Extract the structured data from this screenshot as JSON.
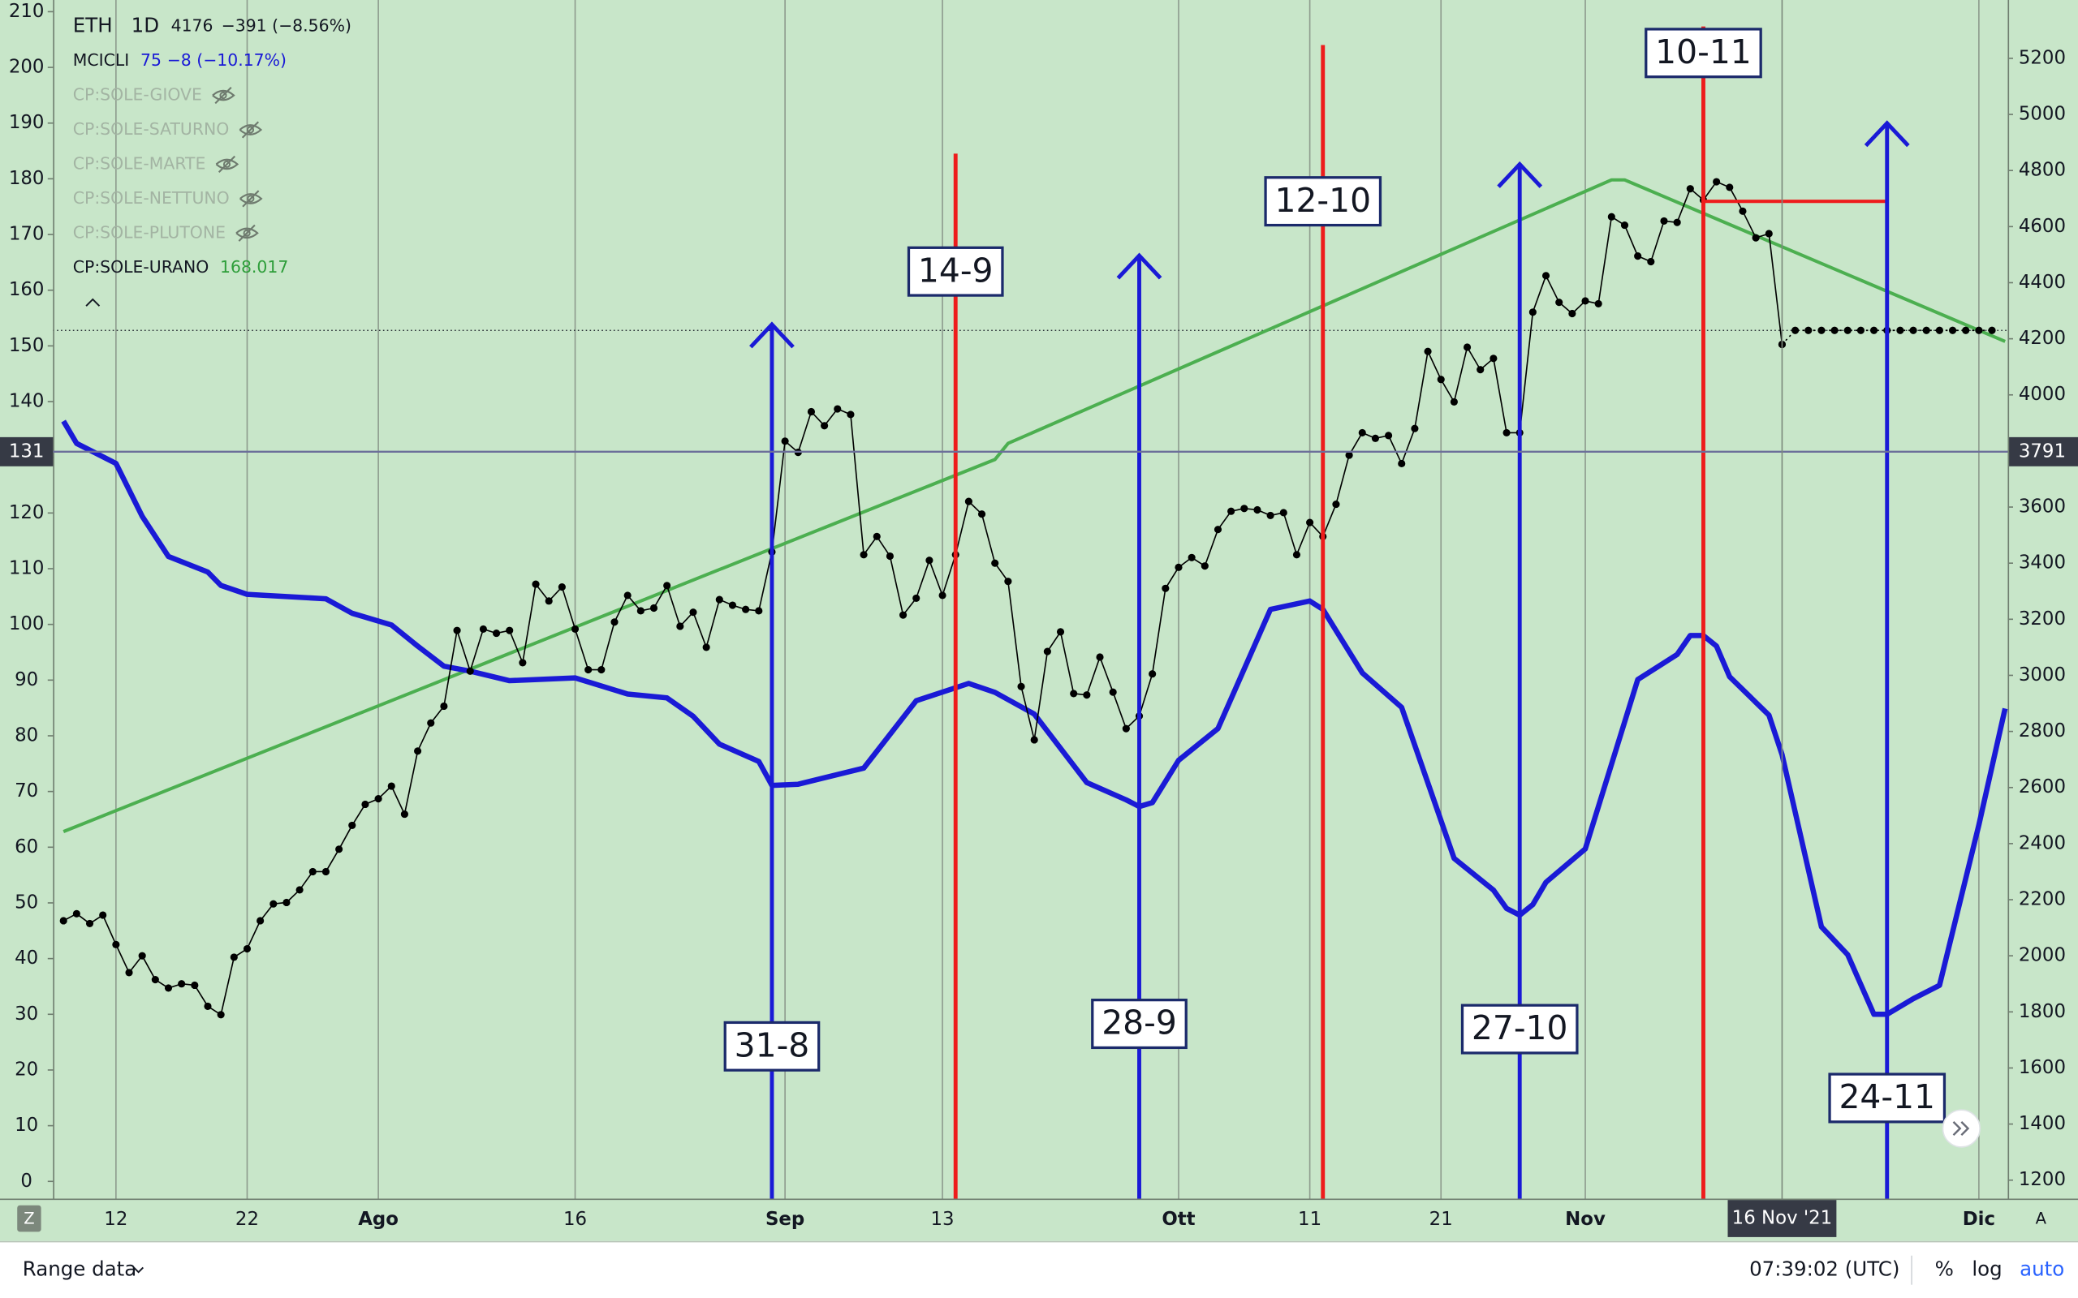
{
  "chart_data": {
    "type": "line",
    "xlim": [
      "2021-07-07",
      "2021-12-03"
    ],
    "ylim": [
      -3.1,
      212.1
    ],
    "y2lim": [
      1134,
      5408
    ],
    "xticks": [
      {
        "value": "2021-07-12",
        "label": "12"
      },
      {
        "value": "2021-07-22",
        "label": "22"
      },
      {
        "value": "2021-08-01",
        "label": "Ago"
      },
      {
        "value": "2021-08-16",
        "label": "16"
      },
      {
        "value": "2021-09-01",
        "label": "Sep"
      },
      {
        "value": "2021-09-13",
        "label": "13"
      },
      {
        "value": "2021-10-01",
        "label": "Ott"
      },
      {
        "value": "2021-10-11",
        "label": "11"
      },
      {
        "value": "2021-10-21",
        "label": "21"
      },
      {
        "value": "2021-11-01",
        "label": "Nov"
      },
      {
        "value": "2021-12-01",
        "label": "Dic"
      }
    ],
    "yticks": [
      0,
      10,
      20,
      30,
      40,
      50,
      60,
      70,
      80,
      90,
      100,
      110,
      120,
      130,
      140,
      150,
      160,
      170,
      180,
      190,
      200,
      210
    ],
    "y2ticks": [
      1200,
      1400,
      1600,
      1800,
      2000,
      2200,
      2400,
      2600,
      2800,
      3000,
      3200,
      3400,
      3600,
      3800,
      4000,
      4200,
      4400,
      4600,
      4800,
      5000,
      5200
    ],
    "grid": {
      "vertical": true,
      "horizontal": false
    },
    "series": [
      {
        "name": "ETH",
        "interval": "1D",
        "last": 4176,
        "change": "−391 (−8.56%)",
        "axis": "y2",
        "color": "#000000",
        "markers": true,
        "x": [
          "2021-07-08",
          "2021-07-09",
          "2021-07-10",
          "2021-07-11",
          "2021-07-12",
          "2021-07-13",
          "2021-07-14",
          "2021-07-15",
          "2021-07-16",
          "2021-07-17",
          "2021-07-18",
          "2021-07-19",
          "2021-07-20",
          "2021-07-21",
          "2021-07-22",
          "2021-07-23",
          "2021-07-24",
          "2021-07-25",
          "2021-07-26",
          "2021-07-27",
          "2021-07-28",
          "2021-07-29",
          "2021-07-30",
          "2021-07-31",
          "2021-08-01",
          "2021-08-02",
          "2021-08-03",
          "2021-08-04",
          "2021-08-05",
          "2021-08-06",
          "2021-08-07",
          "2021-08-08",
          "2021-08-09",
          "2021-08-10",
          "2021-08-11",
          "2021-08-12",
          "2021-08-13",
          "2021-08-14",
          "2021-08-15",
          "2021-08-16",
          "2021-08-17",
          "2021-08-18",
          "2021-08-19",
          "2021-08-20",
          "2021-08-21",
          "2021-08-22",
          "2021-08-23",
          "2021-08-24",
          "2021-08-25",
          "2021-08-26",
          "2021-08-27",
          "2021-08-28",
          "2021-08-29",
          "2021-08-30",
          "2021-08-31",
          "2021-09-01",
          "2021-09-02",
          "2021-09-03",
          "2021-09-04",
          "2021-09-05",
          "2021-09-06",
          "2021-09-07",
          "2021-09-08",
          "2021-09-09",
          "2021-09-10",
          "2021-09-11",
          "2021-09-12",
          "2021-09-13",
          "2021-09-14",
          "2021-09-15",
          "2021-09-16",
          "2021-09-17",
          "2021-09-18",
          "2021-09-19",
          "2021-09-20",
          "2021-09-21",
          "2021-09-22",
          "2021-09-23",
          "2021-09-24",
          "2021-09-25",
          "2021-09-26",
          "2021-09-27",
          "2021-09-28",
          "2021-09-29",
          "2021-09-30",
          "2021-10-01",
          "2021-10-02",
          "2021-10-03",
          "2021-10-04",
          "2021-10-05",
          "2021-10-06",
          "2021-10-07",
          "2021-10-08",
          "2021-10-09",
          "2021-10-10",
          "2021-10-11",
          "2021-10-12",
          "2021-10-13",
          "2021-10-14",
          "2021-10-15",
          "2021-10-16",
          "2021-10-17",
          "2021-10-18",
          "2021-10-19",
          "2021-10-20",
          "2021-10-21",
          "2021-10-22",
          "2021-10-23",
          "2021-10-24",
          "2021-10-25",
          "2021-10-26",
          "2021-10-27",
          "2021-10-28",
          "2021-10-29",
          "2021-10-30",
          "2021-10-31",
          "2021-11-01",
          "2021-11-02",
          "2021-11-03",
          "2021-11-04",
          "2021-11-05",
          "2021-11-06",
          "2021-11-07",
          "2021-11-08",
          "2021-11-09",
          "2021-11-10",
          "2021-11-11",
          "2021-11-12",
          "2021-11-13",
          "2021-11-14",
          "2021-11-15",
          "2021-11-16"
        ],
        "values": [
          2125,
          2150,
          2115,
          2145,
          2040,
          1940,
          2000,
          1915,
          1885,
          1900,
          1895,
          1820,
          1790,
          1995,
          2025,
          2125,
          2185,
          2190,
          2235,
          2300,
          2300,
          2380,
          2465,
          2540,
          2560,
          2605,
          2505,
          2730,
          2830,
          2890,
          3160,
          3015,
          3165,
          3150,
          3160,
          3045,
          3325,
          3265,
          3315,
          3165,
          3020,
          3020,
          3190,
          3285,
          3230,
          3240,
          3320,
          3175,
          3225,
          3100,
          3270,
          3250,
          3235,
          3230,
          3440,
          3835,
          3795,
          3940,
          3890,
          3950,
          3930,
          3430,
          3495,
          3425,
          3215,
          3275,
          3410,
          3285,
          3430,
          3620,
          3575,
          3400,
          3335,
          2960,
          2770,
          3085,
          3155,
          2935,
          2930,
          3065,
          2940,
          2810,
          2855,
          3005,
          3310,
          3385,
          3420,
          3390,
          3520,
          3585,
          3595,
          3590,
          3570,
          3580,
          3430,
          3545,
          3495,
          3610,
          3785,
          3865,
          3845,
          3855,
          3755,
          3880,
          4155,
          4055,
          3975,
          4170,
          4090,
          4130,
          3865,
          3865,
          4295,
          4425,
          4330,
          4290,
          4335,
          4325,
          4635,
          4605,
          4495,
          4475,
          4620,
          4615,
          4735,
          4695,
          4760,
          4740,
          4655,
          4560,
          4575,
          4180
        ]
      },
      {
        "axis": "y2",
        "color": "#000000",
        "markers": true,
        "dash": true,
        "x": [
          "2021-11-16",
          "2021-11-17",
          "2021-11-18",
          "2021-11-19",
          "2021-11-20",
          "2021-11-21",
          "2021-11-22",
          "2021-11-23",
          "2021-11-24",
          "2021-11-25",
          "2021-11-26",
          "2021-11-27",
          "2021-11-28",
          "2021-11-29",
          "2021-11-30",
          "2021-12-01",
          "2021-12-02"
        ],
        "values": [
          4180,
          4230,
          4230,
          4230,
          4230,
          4230,
          4230,
          4230,
          4230,
          4230,
          4230,
          4230,
          4230,
          4230,
          4230,
          4230,
          4230
        ]
      },
      {
        "name": "MCICLI",
        "last": 75,
        "change": "−8 (−10.17%)",
        "axis": "y",
        "color": "#1a1ad6",
        "width": 4,
        "x": [
          "2021-07-08",
          "2021-07-09",
          "2021-07-12",
          "2021-07-14",
          "2021-07-16",
          "2021-07-19",
          "2021-07-20",
          "2021-07-22",
          "2021-07-28",
          "2021-07-30",
          "2021-08-02",
          "2021-08-04",
          "2021-08-06",
          "2021-08-08",
          "2021-08-11",
          "2021-08-16",
          "2021-08-20",
          "2021-08-23",
          "2021-08-25",
          "2021-08-27",
          "2021-08-30",
          "2021-08-31",
          "2021-09-02",
          "2021-09-07",
          "2021-09-11",
          "2021-09-15",
          "2021-09-17",
          "2021-09-20",
          "2021-09-24",
          "2021-09-27",
          "2021-09-28",
          "2021-09-29",
          "2021-10-01",
          "2021-10-04",
          "2021-10-08",
          "2021-10-11",
          "2021-10-12",
          "2021-10-15",
          "2021-10-18",
          "2021-10-22",
          "2021-10-25",
          "2021-10-26",
          "2021-10-27",
          "2021-10-28",
          "2021-10-29",
          "2021-11-01",
          "2021-11-05",
          "2021-11-08",
          "2021-11-09",
          "2021-11-10",
          "2021-11-11",
          "2021-11-12",
          "2021-11-15",
          "2021-11-16",
          "2021-11-19",
          "2021-11-21",
          "2021-11-23",
          "2021-11-24",
          "2021-11-26",
          "2021-11-28",
          "2021-12-01",
          "2021-12-03"
        ],
        "values": [
          136.5,
          132.5,
          128.9,
          119.4,
          112.2,
          109.4,
          107,
          105.4,
          104.6,
          102,
          99.9,
          96.1,
          92.5,
          91.6,
          89.9,
          90.4,
          87.5,
          86.8,
          83.5,
          78.5,
          75.4,
          71.1,
          71.3,
          74.2,
          86.3,
          89.4,
          87.8,
          83.9,
          71.6,
          68.5,
          67.3,
          68,
          75.6,
          81.3,
          102.7,
          104.2,
          102.7,
          91.3,
          85.1,
          58,
          52.3,
          49,
          47.8,
          49.7,
          53.7,
          59.7,
          90.1,
          94.6,
          98,
          98,
          96.1,
          90.6,
          83.7,
          76.6,
          45.7,
          40.7,
          30,
          30,
          32.8,
          35.2,
          64,
          84.9
        ]
      },
      {
        "name": "CP:SOLE-URANO",
        "last": 168.017,
        "axis": "y",
        "color": "#4caf50",
        "width": 2.5,
        "x": [
          "2021-07-08",
          "2021-09-17",
          "2021-09-18",
          "2021-11-03",
          "2021-11-04",
          "2021-12-03"
        ],
        "values": [
          62.8,
          129.6,
          132.5,
          179.8,
          179.8,
          150.8
        ]
      }
    ],
    "hidden_series": [
      "CP:SOLE-GIOVE",
      "CP:SOLE-SATURNO",
      "CP:SOLE-MARTE",
      "CP:SOLE-NETTUNO",
      "CP:SOLE-PLUTONE"
    ],
    "events": [
      {
        "label": "31-8",
        "x": "2021-08-31",
        "color": "#1a1ad6"
      },
      {
        "label": "14-9",
        "x": "2021-09-14",
        "color": "#ee1c1c"
      },
      {
        "label": "28-9",
        "x": "2021-09-28",
        "color": "#1a1ad6"
      },
      {
        "label": "12-10",
        "x": "2021-10-12",
        "color": "#ee1c1c"
      },
      {
        "label": "27-10",
        "x": "2021-10-27",
        "color": "#1a1ad6"
      },
      {
        "label": "10-11",
        "x": "2021-11-10",
        "color": "#ee1c1c"
      },
      {
        "label": "24-11",
        "x": "2021-11-24",
        "color": "#1a1ad6"
      }
    ],
    "levels": [
      {
        "x": [
          "2021-11-10",
          "2021-11-24"
        ],
        "value": 4690,
        "axis": "y2",
        "color": "#ee1c1c"
      }
    ],
    "price_line": 4230,
    "crosshair": {
      "y": 131,
      "y2": 3791,
      "x": {
        "value": "2021-11-16",
        "label": "16 Nov '21"
      }
    }
  },
  "toolbar": {
    "range": "Range data",
    "time": "07:39:02 (UTC)",
    "percent": "%",
    "log": "log",
    "auto": "auto",
    "axis_buttons": [
      "Z",
      "A"
    ]
  }
}
